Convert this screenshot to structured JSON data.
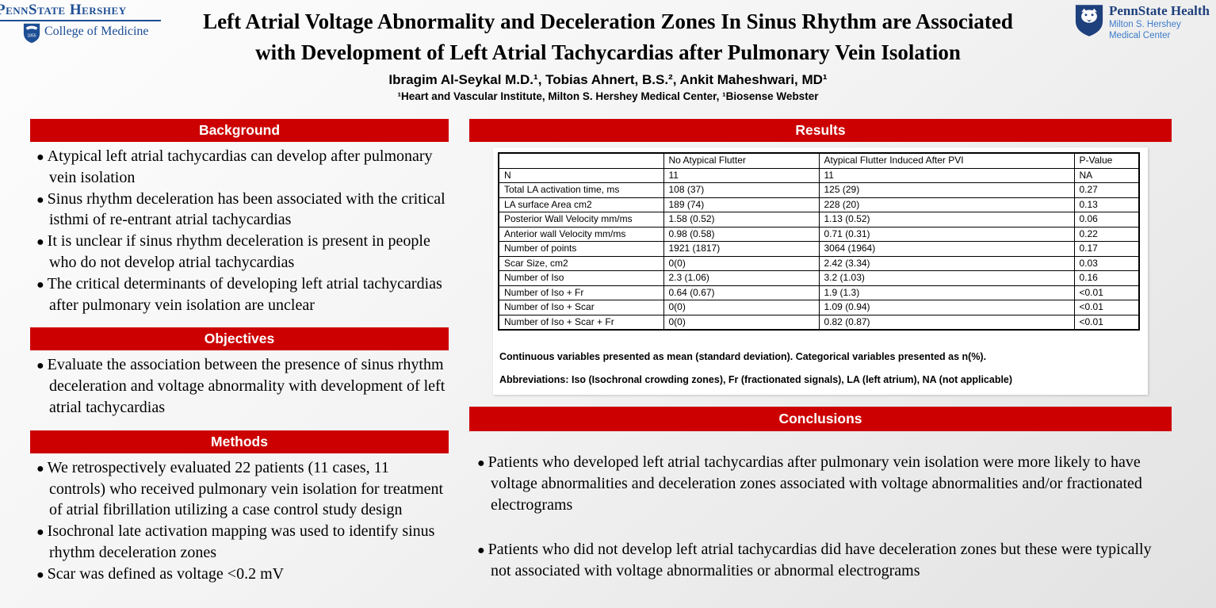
{
  "poster": {
    "title_line1": "Left Atrial Voltage Abnormality and Deceleration Zones In Sinus Rhythm are Associated",
    "title_line2": "with Development of Left Atrial Tachycardias after Pulmonary Vein Isolation",
    "authors": "Ibragim Al-Seykal M.D.¹, Tobias Ahnert, B.S.², Ankit Maheshwari, MD¹",
    "affiliations": "¹Heart and Vascular Institute, Milton S. Hershey Medical Center, ¹Biosense Webster"
  },
  "logos": {
    "left": {
      "name": "PennState Hershey",
      "unit": "College of Medicine"
    },
    "right": {
      "name": "PennState Health",
      "sub1": "Milton S. Hershey",
      "sub2": "Medical Center"
    }
  },
  "colors": {
    "accent_red": "#CC0000",
    "penn_state_navy": "#1E407C",
    "penn_state_light_blue": "#3D7CC9"
  },
  "sections": {
    "background": {
      "title": "Background",
      "bullets": [
        "Atypical left atrial tachycardias can develop after pulmonary vein isolation",
        "Sinus rhythm deceleration has been associated with the critical isthmi of re-entrant atrial tachycardias",
        "It is unclear if sinus rhythm deceleration is present in people who do not develop atrial tachycardias",
        "The critical determinants of developing left atrial tachycardias after pulmonary vein isolation are unclear"
      ]
    },
    "objectives": {
      "title": "Objectives",
      "bullets": [
        "Evaluate the association between the presence of sinus rhythm deceleration and voltage abnormality with development of left atrial tachycardias"
      ]
    },
    "methods": {
      "title": "Methods",
      "bullets": [
        "We retrospectively evaluated 22 patients (11 cases, 11 controls) who received pulmonary vein isolation for treatment of atrial fibrillation utilizing a case control study design",
        "Isochronal late activation mapping was used to identify sinus rhythm deceleration zones",
        "Scar was defined as voltage <0.2 mV"
      ]
    },
    "results": {
      "title": "Results",
      "table": {
        "headers": [
          "",
          "No Atypical Flutter",
          "Atypical Flutter Induced After PVI",
          "P-Value"
        ],
        "rows": [
          [
            "N",
            "11",
            "11",
            "NA"
          ],
          [
            "Total LA activation time, ms",
            "108 (37)",
            "125 (29)",
            "0.27"
          ],
          [
            "LA surface Area cm2",
            "189 (74)",
            "228 (20)",
            "0.13"
          ],
          [
            "Posterior Wall Velocity mm/ms",
            "1.58 (0.52)",
            "1.13 (0.52)",
            "0.06"
          ],
          [
            "Anterior wall Velocity mm/ms",
            "0.98 (0.58)",
            "0.71 (0.31)",
            "0.22"
          ],
          [
            "Number of points",
            "1921 (1817)",
            "3064 (1964)",
            "0.17"
          ],
          [
            "Scar Size, cm2",
            "0(0)",
            "2.42 (3.34)",
            "0.03"
          ],
          [
            "Number of Iso",
            "2.3 (1.06)",
            "3.2 (1.03)",
            "0.16"
          ],
          [
            "Number of Iso + Fr",
            "0.64 (0.67)",
            "1.9 (1.3)",
            "<0.01"
          ],
          [
            "Number of Iso + Scar",
            "0(0)",
            "1.09 (0.94)",
            "<0.01"
          ],
          [
            "Number of Iso + Scar + Fr",
            "0(0)",
            "0.82 (0.87)",
            "<0.01"
          ]
        ]
      },
      "footnotes": [
        "Continuous variables presented as mean (standard deviation). Categorical variables presented as n(%).",
        "Abbreviations: Iso (Isochronal crowding zones), Fr (fractionated signals), LA (left atrium), NA (not applicable)"
      ]
    },
    "conclusions": {
      "title": "Conclusions",
      "bullets": [
        "Patients who developed left atrial tachycardias after pulmonary vein isolation were more likely to have voltage abnormalities and deceleration zones associated with voltage abnormalities and/or fractionated electrograms",
        "Patients who did not develop left atrial tachycardias did have deceleration zones but these were typically not associated with voltage abnormalities or abnormal electrograms"
      ]
    }
  }
}
